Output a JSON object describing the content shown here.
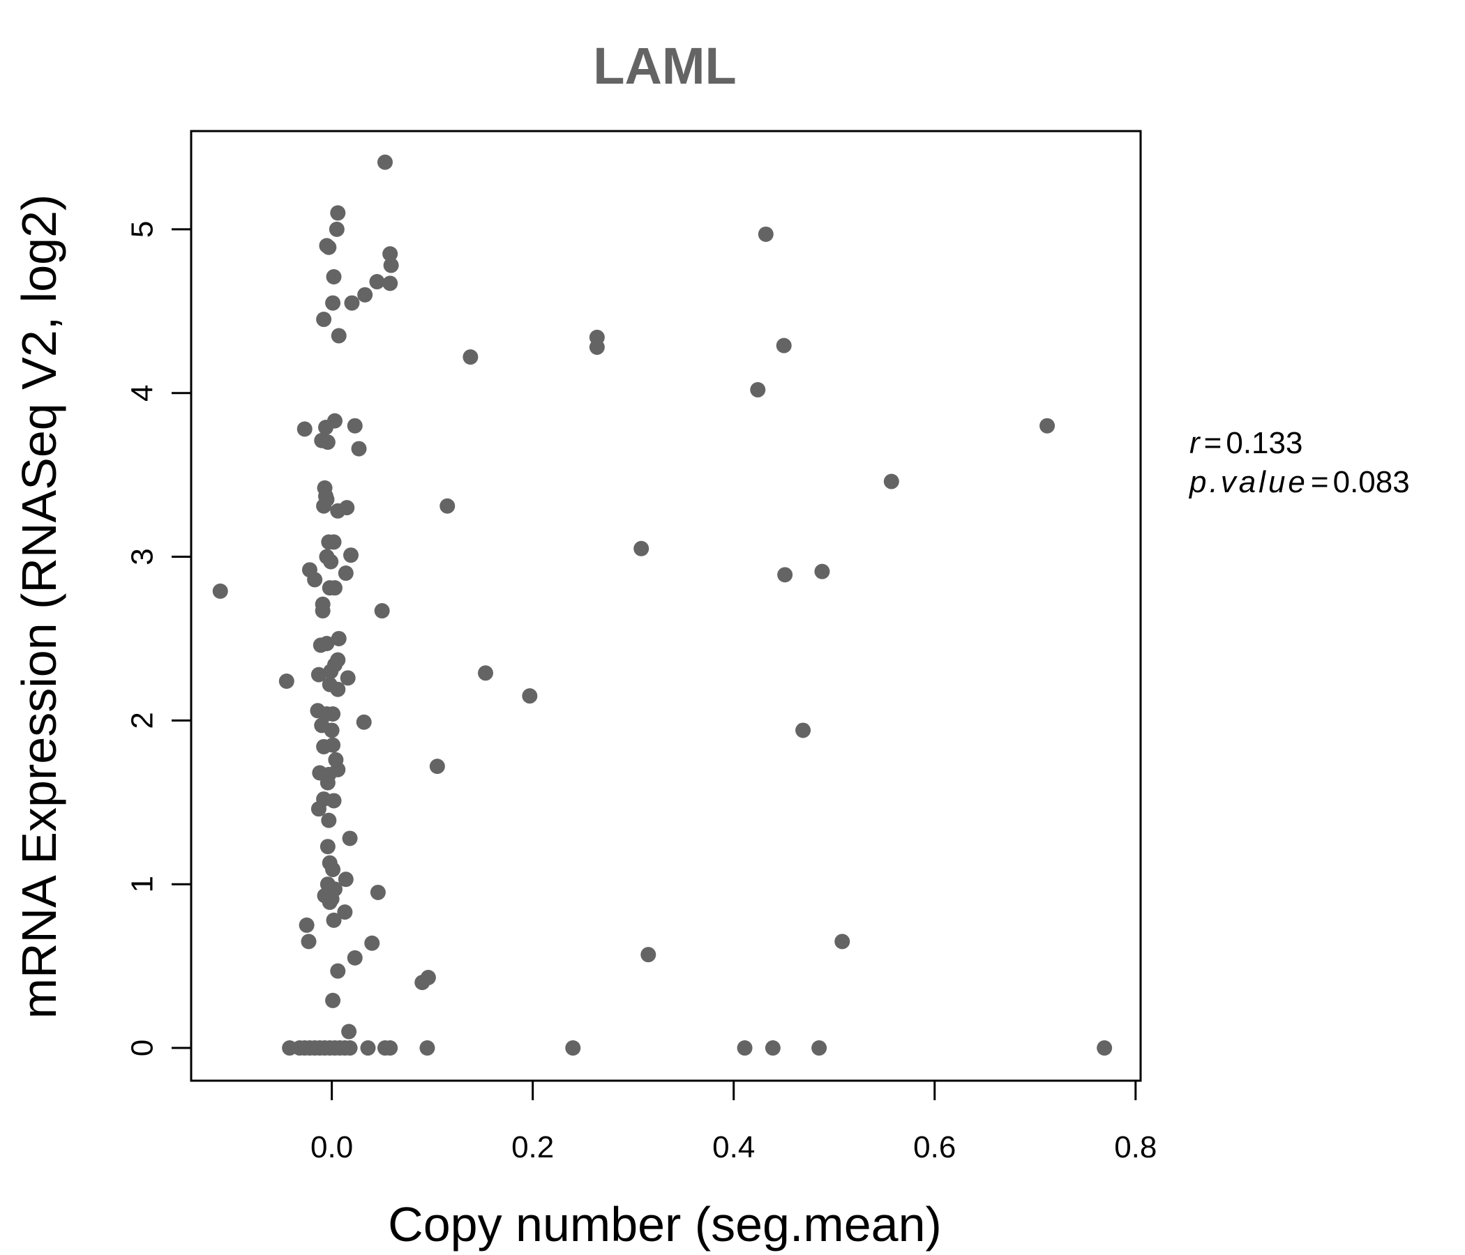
{
  "chart_data": {
    "type": "scatter",
    "title": "LAML",
    "xlabel": "Copy number (seg.mean)",
    "ylabel": "mRNA Expression (RNASeq V2, log2)",
    "xlim": [
      -0.14,
      0.805
    ],
    "ylim": [
      -0.2,
      5.6
    ],
    "xticks": [
      0.0,
      0.2,
      0.4,
      0.6,
      0.8
    ],
    "xtick_labels": [
      "0.0",
      "0.2",
      "0.4",
      "0.6",
      "0.8"
    ],
    "yticks": [
      0,
      1,
      2,
      3,
      4,
      5
    ],
    "ytick_labels": [
      "0",
      "1",
      "2",
      "3",
      "4",
      "5"
    ],
    "grid": false,
    "point_color": "#646464",
    "annotation": {
      "r_symbol": "r",
      "r_value": "0.133",
      "p_symbol": "p.value",
      "p_value": "0.083",
      "equals": "="
    },
    "points": [
      [
        0.053,
        5.41
      ],
      [
        0.006,
        5.1
      ],
      [
        0.005,
        5.0
      ],
      [
        0.432,
        4.97
      ],
      [
        -0.005,
        4.9
      ],
      [
        -0.003,
        4.89
      ],
      [
        0.058,
        4.85
      ],
      [
        0.059,
        4.78
      ],
      [
        0.002,
        4.71
      ],
      [
        0.045,
        4.68
      ],
      [
        0.058,
        4.67
      ],
      [
        0.033,
        4.6
      ],
      [
        0.02,
        4.55
      ],
      [
        0.001,
        4.55
      ],
      [
        -0.008,
        4.45
      ],
      [
        0.007,
        4.35
      ],
      [
        0.264,
        4.34
      ],
      [
        0.264,
        4.28
      ],
      [
        0.45,
        4.29
      ],
      [
        0.138,
        4.22
      ],
      [
        0.424,
        4.02
      ],
      [
        0.003,
        3.83
      ],
      [
        0.023,
        3.8
      ],
      [
        0.712,
        3.8
      ],
      [
        -0.027,
        3.78
      ],
      [
        -0.006,
        3.79
      ],
      [
        -0.01,
        3.71
      ],
      [
        -0.004,
        3.7
      ],
      [
        0.027,
        3.66
      ],
      [
        0.557,
        3.46
      ],
      [
        -0.007,
        3.42
      ],
      [
        -0.006,
        3.37
      ],
      [
        -0.005,
        3.35
      ],
      [
        -0.008,
        3.31
      ],
      [
        0.015,
        3.3
      ],
      [
        0.115,
        3.31
      ],
      [
        0.006,
        3.28
      ],
      [
        -0.003,
        3.09
      ],
      [
        0.002,
        3.09
      ],
      [
        0.308,
        3.05
      ],
      [
        0.019,
        3.01
      ],
      [
        -0.005,
        3.0
      ],
      [
        -0.001,
        2.97
      ],
      [
        -0.022,
        2.92
      ],
      [
        0.451,
        2.89
      ],
      [
        0.488,
        2.91
      ],
      [
        0.014,
        2.9
      ],
      [
        -0.017,
        2.86
      ],
      [
        -0.002,
        2.81
      ],
      [
        0.003,
        2.81
      ],
      [
        -0.111,
        2.79
      ],
      [
        -0.009,
        2.71
      ],
      [
        -0.009,
        2.67
      ],
      [
        0.05,
        2.67
      ],
      [
        0.007,
        2.5
      ],
      [
        -0.005,
        2.47
      ],
      [
        -0.011,
        2.46
      ],
      [
        0.006,
        2.37
      ],
      [
        0.003,
        2.34
      ],
      [
        0.153,
        2.29
      ],
      [
        -0.001,
        2.3
      ],
      [
        -0.013,
        2.28
      ],
      [
        0.016,
        2.26
      ],
      [
        -0.045,
        2.24
      ],
      [
        0.006,
        2.19
      ],
      [
        -0.002,
        2.22
      ],
      [
        0.197,
        2.15
      ],
      [
        -0.014,
        2.06
      ],
      [
        -0.005,
        2.04
      ],
      [
        0.001,
        2.04
      ],
      [
        0.032,
        1.99
      ],
      [
        -0.01,
        1.97
      ],
      [
        0.0,
        1.94
      ],
      [
        0.469,
        1.94
      ],
      [
        -0.008,
        1.84
      ],
      [
        0.001,
        1.85
      ],
      [
        0.004,
        1.76
      ],
      [
        0.105,
        1.72
      ],
      [
        0.006,
        1.7
      ],
      [
        -0.012,
        1.68
      ],
      [
        -0.003,
        1.67
      ],
      [
        -0.004,
        1.62
      ],
      [
        -0.008,
        1.52
      ],
      [
        0.002,
        1.51
      ],
      [
        -0.013,
        1.46
      ],
      [
        -0.003,
        1.39
      ],
      [
        0.018,
        1.28
      ],
      [
        -0.004,
        1.23
      ],
      [
        -0.002,
        1.13
      ],
      [
        0.001,
        1.09
      ],
      [
        0.014,
        1.03
      ],
      [
        -0.004,
        1.0
      ],
      [
        0.003,
        0.97
      ],
      [
        0.046,
        0.95
      ],
      [
        -0.007,
        0.93
      ],
      [
        0.0,
        0.91
      ],
      [
        -0.002,
        0.89
      ],
      [
        0.013,
        0.83
      ],
      [
        -0.025,
        0.75
      ],
      [
        0.002,
        0.78
      ],
      [
        0.508,
        0.65
      ],
      [
        -0.023,
        0.65
      ],
      [
        0.04,
        0.64
      ],
      [
        0.315,
        0.57
      ],
      [
        0.023,
        0.55
      ],
      [
        0.006,
        0.47
      ],
      [
        0.096,
        0.43
      ],
      [
        0.09,
        0.4
      ],
      [
        0.001,
        0.29
      ],
      [
        0.017,
        0.1
      ],
      [
        -0.042,
        0.0
      ],
      [
        -0.032,
        0.0
      ],
      [
        -0.027,
        0.0
      ],
      [
        -0.022,
        0.0
      ],
      [
        -0.017,
        0.0
      ],
      [
        -0.012,
        0.0
      ],
      [
        -0.007,
        0.0
      ],
      [
        -0.002,
        0.0
      ],
      [
        0.003,
        0.0
      ],
      [
        0.008,
        0.0
      ],
      [
        0.013,
        0.0
      ],
      [
        0.018,
        0.0
      ],
      [
        0.036,
        0.0
      ],
      [
        0.053,
        0.0
      ],
      [
        0.058,
        0.0
      ],
      [
        0.095,
        0.0
      ],
      [
        0.24,
        0.0
      ],
      [
        0.411,
        0.0
      ],
      [
        0.439,
        0.0
      ],
      [
        0.485,
        0.0
      ],
      [
        0.769,
        0.0
      ]
    ]
  }
}
